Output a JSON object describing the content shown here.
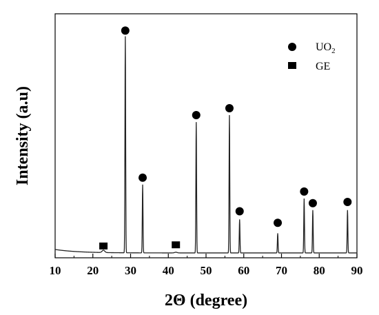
{
  "chart_data": {
    "type": "line",
    "title": "",
    "xlabel": "2Θ (degree)",
    "ylabel": "Intensity (a.u)",
    "xlim": [
      10,
      90
    ],
    "ylim": [
      0,
      100
    ],
    "x_ticks": [
      "10",
      "20",
      "30",
      "40",
      "50",
      "60",
      "70",
      "80",
      "90"
    ],
    "grid": false,
    "legend_position": "top-right",
    "legend": [
      {
        "marker": "circle",
        "label": "UO",
        "subscript": "2"
      },
      {
        "marker": "square",
        "label": "GE"
      }
    ],
    "baseline": 1.5,
    "peaks": [
      {
        "x": 22.8,
        "y": 2.5,
        "phase": "GE"
      },
      {
        "x": 28.6,
        "y": 95,
        "phase": "UO2"
      },
      {
        "x": 33.2,
        "y": 31,
        "phase": "UO2"
      },
      {
        "x": 42.0,
        "y": 1.8,
        "phase": "GE"
      },
      {
        "x": 47.4,
        "y": 58,
        "phase": "UO2"
      },
      {
        "x": 56.2,
        "y": 61,
        "phase": "UO2"
      },
      {
        "x": 58.9,
        "y": 16,
        "phase": "UO2"
      },
      {
        "x": 69.0,
        "y": 10,
        "phase": "UO2"
      },
      {
        "x": 76.0,
        "y": 25,
        "phase": "UO2"
      },
      {
        "x": 78.3,
        "y": 20,
        "phase": "UO2"
      },
      {
        "x": 87.5,
        "y": 20,
        "phase": "UO2"
      }
    ],
    "markers": [
      {
        "x": 22.8,
        "y": 4.5,
        "shape": "square"
      },
      {
        "x": 28.6,
        "y": 97.5,
        "shape": "circle"
      },
      {
        "x": 33.2,
        "y": 34,
        "shape": "circle"
      },
      {
        "x": 42.0,
        "y": 5,
        "shape": "square"
      },
      {
        "x": 47.4,
        "y": 61,
        "shape": "circle"
      },
      {
        "x": 56.2,
        "y": 64,
        "shape": "circle"
      },
      {
        "x": 58.9,
        "y": 19.5,
        "shape": "circle"
      },
      {
        "x": 69.0,
        "y": 14.5,
        "shape": "circle"
      },
      {
        "x": 76.0,
        "y": 28,
        "shape": "circle"
      },
      {
        "x": 78.3,
        "y": 23,
        "shape": "circle"
      },
      {
        "x": 87.5,
        "y": 23.5,
        "shape": "circle"
      }
    ]
  }
}
